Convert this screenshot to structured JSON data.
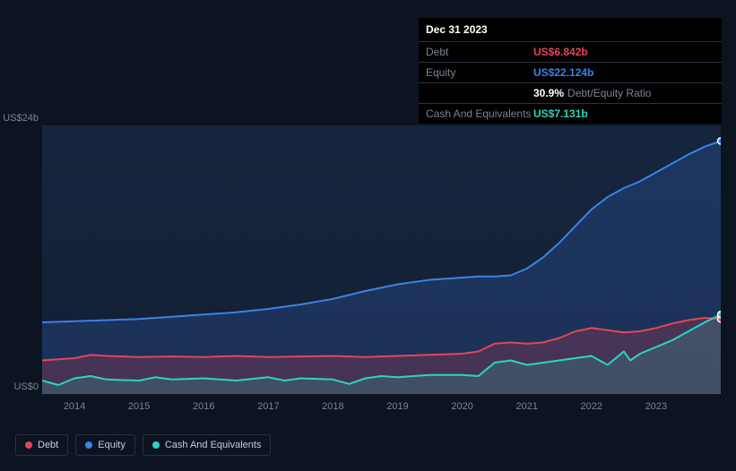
{
  "tooltip": {
    "date": "Dec 31 2023",
    "rows": [
      {
        "label": "Debt",
        "value": "US$6.842b",
        "color": "#e6445a"
      },
      {
        "label": "Equity",
        "value": "US$22.124b",
        "color": "#3b82e6"
      },
      {
        "label": "",
        "value": "30.9%",
        "suffix": "Debt/Equity Ratio",
        "color": "#ffffff"
      },
      {
        "label": "Cash And Equivalents",
        "value": "US$7.131b",
        "color": "#2dd4bf"
      }
    ]
  },
  "chart": {
    "type": "area",
    "background_plot": "linear-gradient(180deg, rgba(30,58,95,0.6) 0%, rgba(20,30,48,0.9) 100%)",
    "y_axis": {
      "min": 0,
      "max": 24,
      "labels": [
        {
          "v": 0,
          "text": "US$0"
        },
        {
          "v": 24,
          "text": "US$24b"
        }
      ]
    },
    "x_axis": {
      "years": [
        2014,
        2015,
        2016,
        2017,
        2018,
        2019,
        2020,
        2021,
        2022,
        2023
      ],
      "start": 2013.5,
      "end": 2024.0
    },
    "series": [
      {
        "name": "Equity",
        "color": "#3b82e6",
        "fill": "rgba(45,85,160,0.35)",
        "points": [
          [
            2013.5,
            6.4
          ],
          [
            2014,
            6.5
          ],
          [
            2014.5,
            6.6
          ],
          [
            2015,
            6.7
          ],
          [
            2015.5,
            6.9
          ],
          [
            2016,
            7.1
          ],
          [
            2016.5,
            7.3
          ],
          [
            2017,
            7.6
          ],
          [
            2017.5,
            8.0
          ],
          [
            2018,
            8.5
          ],
          [
            2018.5,
            9.2
          ],
          [
            2019,
            9.8
          ],
          [
            2019.5,
            10.2
          ],
          [
            2020,
            10.4
          ],
          [
            2020.25,
            10.5
          ],
          [
            2020.5,
            10.5
          ],
          [
            2020.75,
            10.6
          ],
          [
            2021,
            11.2
          ],
          [
            2021.25,
            12.2
          ],
          [
            2021.5,
            13.5
          ],
          [
            2021.75,
            15.0
          ],
          [
            2022,
            16.5
          ],
          [
            2022.25,
            17.6
          ],
          [
            2022.5,
            18.4
          ],
          [
            2022.75,
            19.0
          ],
          [
            2023,
            19.8
          ],
          [
            2023.25,
            20.6
          ],
          [
            2023.5,
            21.4
          ],
          [
            2023.75,
            22.1
          ],
          [
            2024.0,
            22.6
          ]
        ]
      },
      {
        "name": "Debt",
        "color": "#e6445a",
        "fill": "rgba(200,60,80,0.25)",
        "points": [
          [
            2013.5,
            3.0
          ],
          [
            2014,
            3.2
          ],
          [
            2014.25,
            3.5
          ],
          [
            2014.5,
            3.4
          ],
          [
            2015,
            3.3
          ],
          [
            2015.5,
            3.35
          ],
          [
            2016,
            3.3
          ],
          [
            2016.5,
            3.4
          ],
          [
            2017,
            3.3
          ],
          [
            2017.5,
            3.35
          ],
          [
            2018,
            3.4
          ],
          [
            2018.5,
            3.3
          ],
          [
            2019,
            3.4
          ],
          [
            2019.5,
            3.5
          ],
          [
            2020,
            3.6
          ],
          [
            2020.25,
            3.8
          ],
          [
            2020.5,
            4.5
          ],
          [
            2020.75,
            4.6
          ],
          [
            2021,
            4.5
          ],
          [
            2021.25,
            4.6
          ],
          [
            2021.5,
            5.0
          ],
          [
            2021.75,
            5.6
          ],
          [
            2022,
            5.9
          ],
          [
            2022.25,
            5.7
          ],
          [
            2022.5,
            5.5
          ],
          [
            2022.75,
            5.6
          ],
          [
            2023,
            5.9
          ],
          [
            2023.25,
            6.3
          ],
          [
            2023.5,
            6.6
          ],
          [
            2023.75,
            6.8
          ],
          [
            2024.0,
            6.7
          ]
        ]
      },
      {
        "name": "Cash And Equivalents",
        "color": "#2dd4bf",
        "fill": "rgba(45,212,191,0.18)",
        "points": [
          [
            2013.5,
            1.2
          ],
          [
            2013.75,
            0.8
          ],
          [
            2014,
            1.4
          ],
          [
            2014.25,
            1.6
          ],
          [
            2014.5,
            1.3
          ],
          [
            2015,
            1.2
          ],
          [
            2015.25,
            1.5
          ],
          [
            2015.5,
            1.3
          ],
          [
            2016,
            1.4
          ],
          [
            2016.5,
            1.2
          ],
          [
            2017,
            1.5
          ],
          [
            2017.25,
            1.2
          ],
          [
            2017.5,
            1.4
          ],
          [
            2018,
            1.3
          ],
          [
            2018.25,
            0.9
          ],
          [
            2018.5,
            1.4
          ],
          [
            2018.75,
            1.6
          ],
          [
            2019,
            1.5
          ],
          [
            2019.5,
            1.7
          ],
          [
            2020,
            1.7
          ],
          [
            2020.25,
            1.6
          ],
          [
            2020.5,
            2.8
          ],
          [
            2020.75,
            3.0
          ],
          [
            2021,
            2.6
          ],
          [
            2021.25,
            2.8
          ],
          [
            2021.5,
            3.0
          ],
          [
            2021.75,
            3.2
          ],
          [
            2022,
            3.4
          ],
          [
            2022.25,
            2.6
          ],
          [
            2022.5,
            3.8
          ],
          [
            2022.6,
            3.0
          ],
          [
            2022.75,
            3.6
          ],
          [
            2023,
            4.2
          ],
          [
            2023.25,
            4.8
          ],
          [
            2023.5,
            5.6
          ],
          [
            2023.75,
            6.4
          ],
          [
            2024.0,
            7.1
          ]
        ]
      }
    ],
    "endpoint_marker": {
      "x": 2024.0,
      "stroke": "#ffffff"
    }
  },
  "legend": [
    {
      "label": "Debt",
      "color": "#e6445a"
    },
    {
      "label": "Equity",
      "color": "#3b82e6"
    },
    {
      "label": "Cash And Equivalents",
      "color": "#2dd4bf"
    }
  ]
}
